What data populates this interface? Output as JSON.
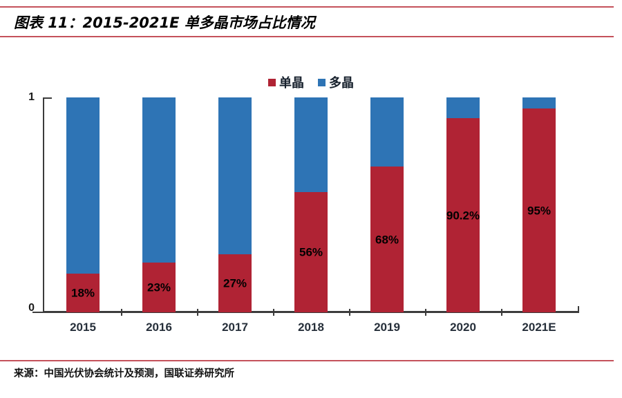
{
  "figure": {
    "title": "图表 11：2015-2021E 单多晶市场占比情况",
    "source": "来源：中国光伏协会统计及预测，国联证券研究所"
  },
  "axis": {
    "y_max_label": "1",
    "y_min_label": "0"
  },
  "colors": {
    "mono_red": "#B02334",
    "multi_blue": "#2E74B5",
    "rule_red": "#C4515A",
    "axis_gray": "#3B3B3B"
  },
  "chart_data": {
    "type": "bar",
    "stacked": true,
    "title": "2015-2021E 单多晶市场占比情况",
    "categories": [
      "2015",
      "2016",
      "2017",
      "2018",
      "2019",
      "2020",
      "2021E"
    ],
    "series": [
      {
        "name": "单晶",
        "color": "#B02334",
        "values": [
          0.18,
          0.23,
          0.27,
          0.56,
          0.68,
          0.902,
          0.95
        ],
        "labels": [
          "18%",
          "23%",
          "27%",
          "56%",
          "68%",
          "90.2%",
          "95%"
        ]
      },
      {
        "name": "多晶",
        "color": "#2E74B5",
        "values": [
          0.82,
          0.77,
          0.73,
          0.44,
          0.32,
          0.098,
          0.05
        ],
        "labels": []
      }
    ],
    "ylim": [
      0,
      1
    ],
    "yticks": [
      "0",
      "1"
    ],
    "xlabel": "",
    "ylabel": "",
    "grid": false,
    "legend_position": "top-center"
  }
}
